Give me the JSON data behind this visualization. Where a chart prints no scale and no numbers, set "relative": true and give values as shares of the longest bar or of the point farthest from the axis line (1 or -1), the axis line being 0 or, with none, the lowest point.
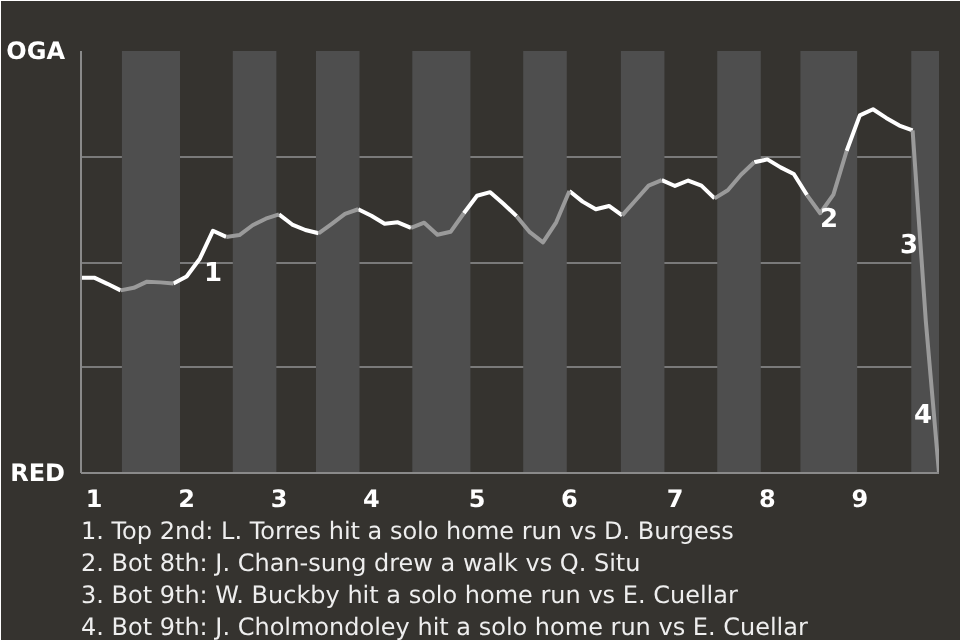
{
  "chart_data": {
    "type": "line",
    "relative": true,
    "categories": [
      null,
      "1",
      null,
      null,
      null,
      null,
      null,
      null,
      "2",
      null,
      null,
      null,
      null,
      null,
      null,
      "3",
      null,
      null,
      null,
      null,
      null,
      null,
      "4",
      null,
      null,
      null,
      null,
      null,
      null,
      null,
      "5",
      null,
      null,
      null,
      null,
      null,
      null,
      "6",
      null,
      null,
      null,
      null,
      null,
      null,
      null,
      "7",
      null,
      null,
      null,
      null,
      null,
      null,
      "8",
      null,
      null,
      null,
      null,
      null,
      null,
      "9",
      null,
      null,
      null,
      null,
      null,
      null
    ],
    "series": [
      {
        "color": "#ffffff",
        "values": [
          0.537,
          0.537,
          0.52,
          0.502,
          null,
          null,
          null,
          0.521,
          0.54,
          0.589,
          0.666,
          0.649,
          null,
          null,
          null,
          0.711,
          0.683,
          0.668,
          0.659,
          null,
          null,
          0.725,
          0.707,
          0.685,
          0.689,
          0.674,
          null,
          null,
          null,
          0.714,
          0.762,
          0.772,
          0.74,
          0.706,
          null,
          null,
          null,
          0.775,
          0.746,
          0.725,
          0.734,
          0.708,
          null,
          null,
          0.805,
          0.789,
          0.804,
          0.79,
          0.755,
          null,
          null,
          0.854,
          0.862,
          0.84,
          0.822,
          0.764,
          null,
          null,
          0.885,
          0.983,
          1,
          0.976,
          0.955,
          0.942,
          null,
          null
        ]
      },
      {
        "color": "#9a9a9a",
        "values": [
          null,
          null,
          null,
          0.502,
          0.509,
          0.526,
          0.524,
          0.521,
          null,
          null,
          null,
          0.649,
          0.654,
          0.681,
          0.699,
          0.711,
          null,
          null,
          0.659,
          0.685,
          0.712,
          0.725,
          null,
          null,
          null,
          0.674,
          0.688,
          0.655,
          0.663,
          0.714,
          null,
          null,
          null,
          0.706,
          0.662,
          0.634,
          0.689,
          0.775,
          null,
          null,
          null,
          0.708,
          0.749,
          0.79,
          0.805,
          null,
          null,
          null,
          0.755,
          0.777,
          0.82,
          0.854,
          null,
          null,
          null,
          0.764,
          0.714,
          0.765,
          0.885,
          null,
          null,
          null,
          null,
          0.942,
          0.418,
          0
        ]
      }
    ],
    "grid": "y",
    "annotations": [
      "OGA",
      "RED",
      "1",
      "2",
      "3",
      "4",
      "1. Top 2nd: L. Torres hit a solo home run vs D. Burgess",
      "2. Bot 8th: J. Chan-sung drew a walk vs Q. Situ",
      "3. Bot 9th: W. Buckby hit a solo home run vs E. Cuellar",
      "4. Bot 9th: J. Cholmondoley hit a solo home run vs E. Cuellar"
    ],
    "line_style": "solid"
  }
}
